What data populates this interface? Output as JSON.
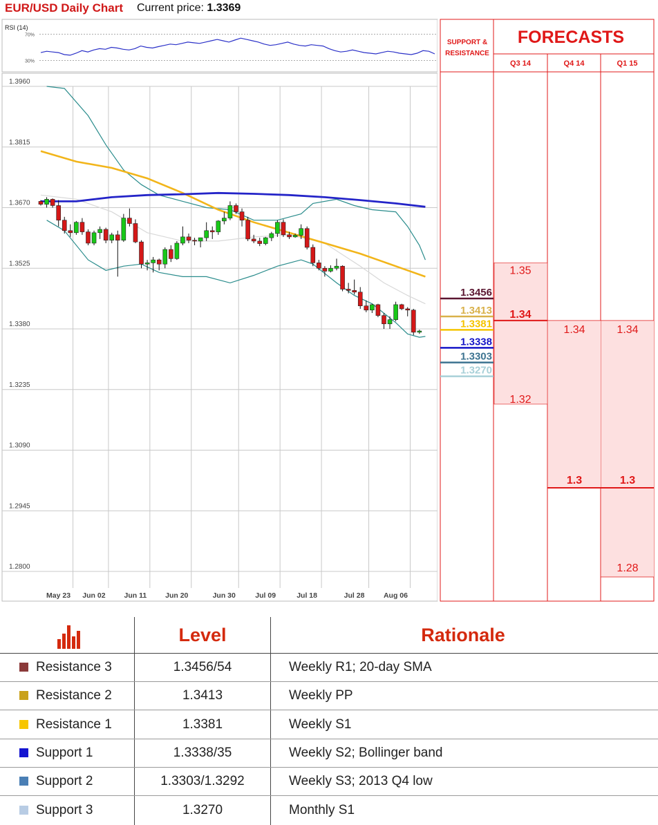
{
  "header": {
    "title": "EUR/USD Daily Chart",
    "current_price_label": "Current price:",
    "current_price": "1.3369"
  },
  "rsi": {
    "label": "RSI (14)",
    "upper_label": "70%",
    "lower_label": "30%",
    "upper": 70,
    "lower": 30,
    "values": [
      42,
      44,
      43,
      42,
      39,
      38,
      41,
      45,
      43,
      46,
      48,
      47,
      50,
      49,
      47,
      46,
      48,
      52,
      50,
      49,
      51,
      53,
      55,
      54,
      56,
      58,
      57,
      56,
      58,
      60,
      62,
      60,
      58,
      61,
      64,
      62,
      60,
      58,
      55,
      53,
      54,
      56,
      58,
      55,
      53,
      52,
      54,
      53,
      52,
      48,
      45,
      43,
      44,
      46,
      44,
      42,
      41,
      40,
      42,
      44,
      43,
      41,
      40,
      39,
      41,
      45,
      44,
      40
    ]
  },
  "chart_data": {
    "type": "candlestick",
    "title": "EUR/USD Daily Chart",
    "y_ticks": [
      "1.3960",
      "1.3815",
      "1.3670",
      "1.3525",
      "1.3380",
      "1.3235",
      "1.3090",
      "1.2945",
      "1.2800"
    ],
    "ylim": [
      1.28,
      1.396
    ],
    "x_ticks": [
      {
        "label": "May 23",
        "index": 1
      },
      {
        "label": "Jun 02",
        "index": 7
      },
      {
        "label": "Jun 11",
        "index": 14
      },
      {
        "label": "Jun 20",
        "index": 21
      },
      {
        "label": "Jun 30",
        "index": 29
      },
      {
        "label": "Jul 09",
        "index": 36
      },
      {
        "label": "Jul 18",
        "index": 43
      },
      {
        "label": "Jul 28",
        "index": 51
      },
      {
        "label": "Aug 06",
        "index": 58
      }
    ],
    "candles": [
      [
        1.3685,
        1.3688,
        1.3675,
        1.3678
      ],
      [
        1.3678,
        1.3695,
        1.367,
        1.369
      ],
      [
        1.369,
        1.3692,
        1.367,
        1.3675
      ],
      [
        1.3675,
        1.3688,
        1.3625,
        1.364
      ],
      [
        1.364,
        1.3648,
        1.3608,
        1.3615
      ],
      [
        1.3615,
        1.363,
        1.36,
        1.361
      ],
      [
        1.361,
        1.3638,
        1.3605,
        1.3635
      ],
      [
        1.3635,
        1.3645,
        1.3605,
        1.3612
      ],
      [
        1.3612,
        1.3618,
        1.358,
        1.3585
      ],
      [
        1.3585,
        1.3615,
        1.358,
        1.361
      ],
      [
        1.361,
        1.3625,
        1.3595,
        1.3618
      ],
      [
        1.3618,
        1.3622,
        1.3585,
        1.3592
      ],
      [
        1.3592,
        1.361,
        1.3585,
        1.3605
      ],
      [
        1.3605,
        1.3615,
        1.3505,
        1.3592
      ],
      [
        1.3592,
        1.3655,
        1.3588,
        1.3645
      ],
      [
        1.3645,
        1.3668,
        1.3625,
        1.3632
      ],
      [
        1.3632,
        1.3642,
        1.3585,
        1.3588
      ],
      [
        1.3588,
        1.3592,
        1.3525,
        1.3535
      ],
      [
        1.3535,
        1.3545,
        1.352,
        1.3538
      ],
      [
        1.3538,
        1.3552,
        1.3515,
        1.3545
      ],
      [
        1.3545,
        1.3548,
        1.352,
        1.3535
      ],
      [
        1.3535,
        1.3575,
        1.3525,
        1.357
      ],
      [
        1.357,
        1.358,
        1.354,
        1.3548
      ],
      [
        1.3548,
        1.359,
        1.3545,
        1.3585
      ],
      [
        1.3585,
        1.3625,
        1.358,
        1.36
      ],
      [
        1.36,
        1.3608,
        1.3585,
        1.3592
      ],
      [
        1.3592,
        1.3598,
        1.358,
        1.359
      ],
      [
        1.359,
        1.3598,
        1.3575,
        1.3598
      ],
      [
        1.3598,
        1.3635,
        1.359,
        1.3615
      ],
      [
        1.3615,
        1.3625,
        1.3595,
        1.3612
      ],
      [
        1.3612,
        1.364,
        1.3605,
        1.3638
      ],
      [
        1.3638,
        1.366,
        1.363,
        1.3645
      ],
      [
        1.3645,
        1.3685,
        1.364,
        1.3675
      ],
      [
        1.3675,
        1.368,
        1.3655,
        1.366
      ],
      [
        1.366,
        1.3668,
        1.3625,
        1.364
      ],
      [
        1.364,
        1.3648,
        1.359,
        1.3595
      ],
      [
        1.3595,
        1.3605,
        1.3585,
        1.359
      ],
      [
        1.359,
        1.3598,
        1.3578,
        1.3584
      ],
      [
        1.3584,
        1.36,
        1.358,
        1.3598
      ],
      [
        1.3598,
        1.3612,
        1.359,
        1.3608
      ],
      [
        1.3608,
        1.364,
        1.36,
        1.3635
      ],
      [
        1.3635,
        1.3642,
        1.36,
        1.3605
      ],
      [
        1.3605,
        1.3612,
        1.3595,
        1.36
      ],
      [
        1.36,
        1.3608,
        1.3598,
        1.3604
      ],
      [
        1.3604,
        1.363,
        1.3595,
        1.362
      ],
      [
        1.362,
        1.3625,
        1.357,
        1.3575
      ],
      [
        1.3575,
        1.3582,
        1.353,
        1.3538
      ],
      [
        1.3538,
        1.3545,
        1.352,
        1.3525
      ],
      [
        1.3525,
        1.353,
        1.3505,
        1.3518
      ],
      [
        1.3518,
        1.3532,
        1.3515,
        1.3525
      ],
      [
        1.3525,
        1.3548,
        1.352,
        1.353
      ],
      [
        1.353,
        1.3532,
        1.347,
        1.3475
      ],
      [
        1.3475,
        1.349,
        1.3465,
        1.3472
      ],
      [
        1.3472,
        1.3498,
        1.3462,
        1.3468
      ],
      [
        1.3468,
        1.348,
        1.3428,
        1.3435
      ],
      [
        1.3435,
        1.3448,
        1.342,
        1.3425
      ],
      [
        1.3425,
        1.344,
        1.3418,
        1.3438
      ],
      [
        1.3438,
        1.344,
        1.3408,
        1.3412
      ],
      [
        1.3412,
        1.3418,
        1.338,
        1.3392
      ],
      [
        1.3392,
        1.341,
        1.338,
        1.3402
      ],
      [
        1.3402,
        1.3445,
        1.3398,
        1.3438
      ],
      [
        1.3438,
        1.344,
        1.3425,
        1.3428
      ],
      [
        1.3428,
        1.3432,
        1.341,
        1.3425
      ],
      [
        1.3425,
        1.3428,
        1.3365,
        1.3372
      ],
      [
        1.3372,
        1.3378,
        1.3368,
        1.3375
      ]
    ],
    "ma_yellow": [
      [
        0,
        1.3805
      ],
      [
        6,
        1.378
      ],
      [
        12,
        1.3765
      ],
      [
        18,
        1.374
      ],
      [
        24,
        1.3705
      ],
      [
        30,
        1.3665
      ],
      [
        36,
        1.3635
      ],
      [
        42,
        1.361
      ],
      [
        48,
        1.3585
      ],
      [
        54,
        1.356
      ],
      [
        58,
        1.354
      ],
      [
        62,
        1.352
      ],
      [
        65,
        1.3505
      ]
    ],
    "ma_blue": [
      [
        0,
        1.3685
      ],
      [
        6,
        1.3685
      ],
      [
        12,
        1.3695
      ],
      [
        18,
        1.37
      ],
      [
        24,
        1.3702
      ],
      [
        30,
        1.3705
      ],
      [
        36,
        1.3703
      ],
      [
        42,
        1.37
      ],
      [
        48,
        1.3695
      ],
      [
        54,
        1.3688
      ],
      [
        60,
        1.368
      ],
      [
        65,
        1.3672
      ]
    ],
    "bb_upper": [
      [
        1,
        1.396
      ],
      [
        4,
        1.3955
      ],
      [
        8,
        1.389
      ],
      [
        11,
        1.382
      ],
      [
        14,
        1.376
      ],
      [
        17,
        1.3725
      ],
      [
        20,
        1.37
      ],
      [
        24,
        1.3685
      ],
      [
        28,
        1.367
      ],
      [
        32,
        1.3665
      ],
      [
        36,
        1.364
      ],
      [
        40,
        1.364
      ],
      [
        44,
        1.3655
      ],
      [
        46,
        1.368
      ],
      [
        50,
        1.369
      ],
      [
        53,
        1.3675
      ],
      [
        56,
        1.3665
      ],
      [
        60,
        1.366
      ],
      [
        62,
        1.3625
      ],
      [
        64,
        1.358
      ],
      [
        65,
        1.3545
      ]
    ],
    "bb_lower": [
      [
        1,
        1.364
      ],
      [
        4,
        1.3615
      ],
      [
        8,
        1.3545
      ],
      [
        11,
        1.352
      ],
      [
        14,
        1.353
      ],
      [
        17,
        1.3535
      ],
      [
        20,
        1.3515
      ],
      [
        24,
        1.3505
      ],
      [
        28,
        1.3505
      ],
      [
        32,
        1.349
      ],
      [
        36,
        1.3508
      ],
      [
        40,
        1.353
      ],
      [
        44,
        1.3545
      ],
      [
        46,
        1.3535
      ],
      [
        50,
        1.349
      ],
      [
        53,
        1.346
      ],
      [
        56,
        1.344
      ],
      [
        60,
        1.3395
      ],
      [
        62,
        1.3368
      ],
      [
        64,
        1.336
      ],
      [
        65,
        1.3362
      ]
    ],
    "ma_grey": [
      [
        0,
        1.37
      ],
      [
        6,
        1.369
      ],
      [
        12,
        1.366
      ],
      [
        18,
        1.361
      ],
      [
        24,
        1.359
      ],
      [
        30,
        1.359
      ],
      [
        36,
        1.36
      ],
      [
        42,
        1.3605
      ],
      [
        48,
        1.3585
      ],
      [
        54,
        1.353
      ],
      [
        58,
        1.349
      ],
      [
        62,
        1.346
      ],
      [
        65,
        1.344
      ]
    ],
    "levels": [
      {
        "label": "1.3456",
        "value": 1.3456,
        "color": "#5a1630",
        "bold": true
      },
      {
        "label": "1.3413",
        "value": 1.3413,
        "color": "#d9b14a",
        "bold": true
      },
      {
        "label": "1.3381",
        "value": 1.3381,
        "color": "#f5c400",
        "bold": true
      },
      {
        "label": "1.3338",
        "value": 1.3338,
        "color": "#1515c8",
        "bold": true
      },
      {
        "label": "1.3303",
        "value": 1.3303,
        "color": "#3c7390",
        "bold": true
      },
      {
        "label": "1.3270",
        "value": 1.327,
        "color": "#a8d0d8",
        "bold": true
      }
    ]
  },
  "forecasts": {
    "title": "FORECASTS",
    "sr_label": "SUPPORT & RESISTANCE",
    "columns": [
      {
        "label": "Q3 14",
        "high": "1.35",
        "mid": "1.34",
        "low": "1.32",
        "high_v": 1.35,
        "mid_v": 1.34,
        "low_v": 1.32
      },
      {
        "label": "Q4 14",
        "high": "1.34",
        "mid": "1.3",
        "low": "",
        "high_v": 1.34,
        "mid_v": 1.3,
        "low_v": null
      },
      {
        "label": "Q1 15",
        "high": "1.34",
        "mid": "1.3",
        "low": "1.28",
        "high_v": 1.34,
        "mid_v": 1.3,
        "low_v": 1.28
      }
    ]
  },
  "table": {
    "header_level": "Level",
    "header_rationale": "Rationale",
    "rows": [
      {
        "name": "Resistance 3",
        "level": "1.3456/54",
        "rationale": "Weekly R1; 20-day SMA",
        "color": "#8b3a3a"
      },
      {
        "name": "Resistance 2",
        "level": "1.3413",
        "rationale": "Weekly PP",
        "color": "#c9a11a"
      },
      {
        "name": "Resistance 1",
        "level": "1.3381",
        "rationale": "Weekly S1",
        "color": "#f7c600"
      },
      {
        "name": "Support 1",
        "level": "1.3338/35",
        "rationale": "Weekly S2; Bollinger band",
        "color": "#1414d0"
      },
      {
        "name": "Support 2",
        "level": "1.3303/1.3292",
        "rationale": "Weekly S3; 2013 Q4 low",
        "color": "#4a7fb5"
      },
      {
        "name": "Support 3",
        "level": "1.3270",
        "rationale": "Monthly S1",
        "color": "#b8cce4"
      }
    ]
  }
}
